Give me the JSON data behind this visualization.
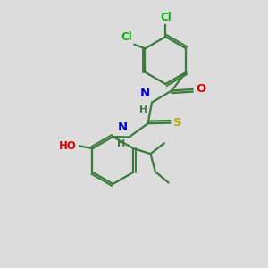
{
  "background_color": "#dcdcdc",
  "bond_color": "#3a7a3a",
  "atom_colors": {
    "Cl": "#00bb00",
    "O": "#dd0000",
    "N": "#0000dd",
    "S": "#bbaa00",
    "HO": "#dd0000",
    "C": "#3a7a3a"
  },
  "figsize": [
    3.0,
    3.0
  ],
  "dpi": 100
}
